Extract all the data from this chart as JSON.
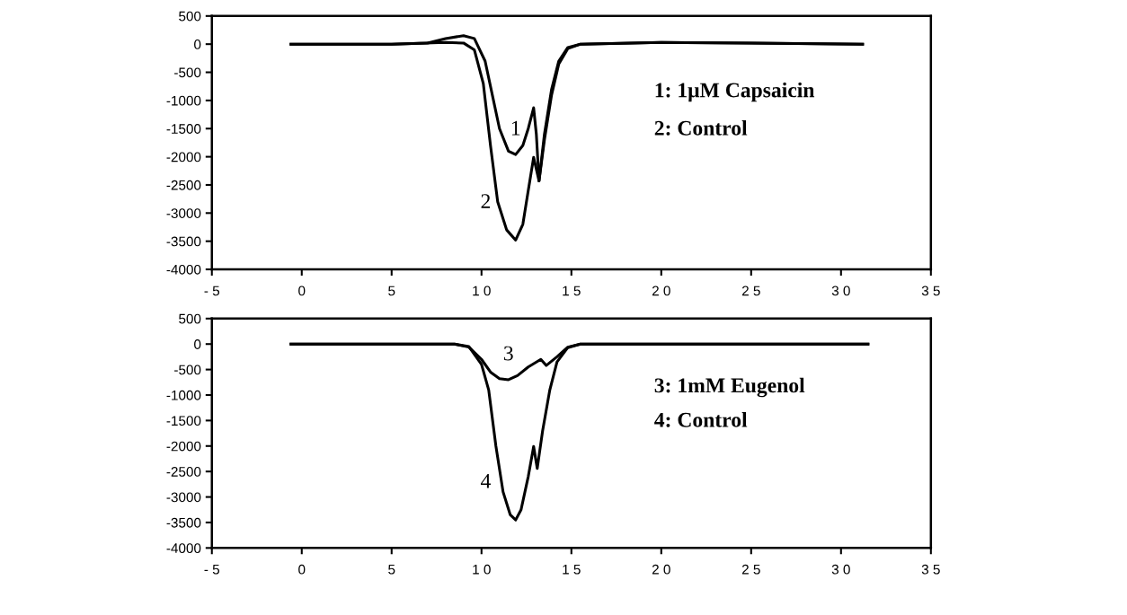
{
  "chart_data": [
    {
      "type": "line",
      "xlim": [
        -5,
        35
      ],
      "ylim": [
        -4000,
        500
      ],
      "xticks": [
        {
          "value": -5,
          "label": "- 5"
        },
        0,
        5,
        {
          "value": 10,
          "label": "1 0"
        },
        {
          "value": 15,
          "label": "1 5"
        },
        {
          "value": 20,
          "label": "2 0"
        },
        {
          "value": 25,
          "label": "2 5"
        },
        {
          "value": 30,
          "label": "3 0"
        },
        {
          "value": 35,
          "label": "3 5"
        }
      ],
      "yticks": [
        500,
        0,
        -500,
        -1000,
        -1500,
        -2000,
        -2500,
        -3000,
        -3500,
        -4000
      ],
      "grid": false,
      "marker": "none",
      "line_style": "solid",
      "series": [
        {
          "name": "1",
          "color": "#000000",
          "x": [
            -0.6,
            5,
            7,
            8,
            9,
            9.6,
            10.2,
            10.6,
            11.0,
            11.5,
            11.9,
            12.3,
            12.6,
            12.9,
            13.05,
            13.2,
            13.5,
            13.9,
            14.3,
            14.8,
            15.5,
            20,
            25,
            31.2
          ],
          "values": [
            0,
            0,
            20,
            100,
            150,
            100,
            -300,
            -900,
            -1500,
            -1900,
            -1960,
            -1800,
            -1500,
            -1130,
            -1600,
            -2430,
            -1700,
            -900,
            -350,
            -80,
            0,
            30,
            20,
            0
          ]
        },
        {
          "name": "2",
          "color": "#000000",
          "x": [
            -0.6,
            5,
            8,
            9,
            9.6,
            10.1,
            10.5,
            10.9,
            11.4,
            11.9,
            12.3,
            12.6,
            12.9,
            13.2,
            13.5,
            13.9,
            14.3,
            14.8,
            15.5,
            20,
            25,
            31.2
          ],
          "values": [
            0,
            0,
            30,
            20,
            -100,
            -700,
            -1800,
            -2800,
            -3300,
            -3480,
            -3200,
            -2600,
            -2010,
            -2430,
            -1600,
            -800,
            -300,
            -60,
            0,
            30,
            20,
            0
          ]
        }
      ],
      "annotations": [
        "1: 1μM Capsaicin",
        "2: Control"
      ]
    },
    {
      "type": "line",
      "xlim": [
        -5,
        35
      ],
      "ylim": [
        -4000,
        500
      ],
      "xticks": [
        {
          "value": -5,
          "label": "- 5"
        },
        0,
        5,
        {
          "value": 10,
          "label": "1 0"
        },
        {
          "value": 15,
          "label": "1 5"
        },
        {
          "value": 20,
          "label": "2 0"
        },
        {
          "value": 25,
          "label": "2 5"
        },
        {
          "value": 30,
          "label": "3 0"
        },
        {
          "value": 35,
          "label": "3 5"
        }
      ],
      "yticks": [
        500,
        0,
        -500,
        -1000,
        -1500,
        -2000,
        -2500,
        -3000,
        -3500,
        -4000
      ],
      "grid": false,
      "marker": "none",
      "line_style": "solid",
      "series": [
        {
          "name": "3",
          "color": "#000000",
          "x": [
            -0.6,
            5,
            8.5,
            9.3,
            10,
            10.5,
            11,
            11.5,
            12,
            12.6,
            13.3,
            13.6,
            14.2,
            14.8,
            15.5,
            20,
            25,
            31.5
          ],
          "values": [
            0,
            0,
            0,
            -60,
            -300,
            -550,
            -680,
            -700,
            -620,
            -450,
            -300,
            -420,
            -250,
            -60,
            0,
            0,
            0,
            0
          ]
        },
        {
          "name": "4",
          "color": "#000000",
          "x": [
            -0.6,
            5,
            8.5,
            9.3,
            10.0,
            10.4,
            10.8,
            11.2,
            11.6,
            11.9,
            12.2,
            12.6,
            12.9,
            13.1,
            13.4,
            13.8,
            14.2,
            14.8,
            15.5,
            20,
            25,
            31.5
          ],
          "values": [
            0,
            0,
            0,
            -50,
            -400,
            -900,
            -2000,
            -2900,
            -3350,
            -3450,
            -3250,
            -2600,
            -2010,
            -2440,
            -1700,
            -900,
            -350,
            -70,
            0,
            0,
            0,
            0
          ]
        }
      ],
      "annotations": [
        "3: 1mM Eugenol",
        "4: Control"
      ]
    }
  ]
}
